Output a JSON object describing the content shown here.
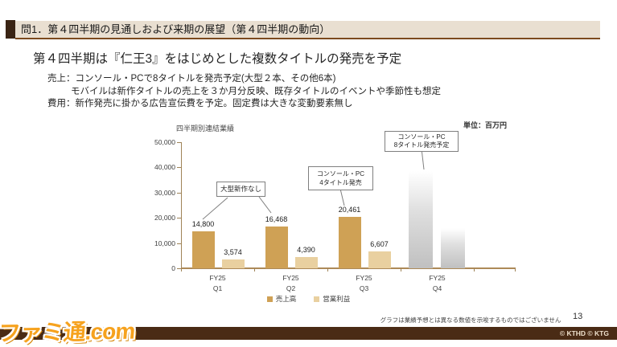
{
  "header": {
    "title": "問1．第４四半期の見通しおよび来期の展望（第４四半期の動向）"
  },
  "title": "第４四半期は『仁王3』をはじめとした複数タイトルの発売を予定",
  "body": {
    "sales_line1": "売上：コンソール・PCで8タイトルを発売予定(大型２本、その他6本)",
    "sales_line2": "モバイルは新作タイトルの売上を３か月分反映、既存タイトルのイベントや季節性も想定",
    "cost_line": "費用：新作発売に掛かる広告宣伝費を予定。固定費は大きな変動要素無し"
  },
  "chart_data": {
    "type": "bar",
    "title": "四半期別連結業績",
    "unit_label": "単位：百万円",
    "categories": [
      {
        "line1": "FY25",
        "line2": "Q1"
      },
      {
        "line1": "FY25",
        "line2": "Q2"
      },
      {
        "line1": "FY25",
        "line2": "Q3"
      },
      {
        "line1": "FY25",
        "line2": "Q4"
      }
    ],
    "series": [
      {
        "name": "売上高",
        "color": "#cfa155",
        "values": [
          14800,
          16468,
          20461,
          null
        ]
      },
      {
        "name": "営業利益",
        "color": "#e9d0a0",
        "values": [
          3574,
          4390,
          6607,
          null
        ]
      }
    ],
    "q4_forecast": {
      "note": "Q4 shown as undisclosed gray gradient bars",
      "bars": [
        {
          "series": "売上高",
          "approx_value": 40000
        },
        {
          "series": "営業利益",
          "approx_value": 16500
        }
      ]
    },
    "ylim": [
      0,
      50000
    ],
    "yticks": [
      "50,000",
      "40,000",
      "30,000",
      "20,000",
      "10,000",
      "0"
    ],
    "legend_position": "bottom",
    "annotations": [
      {
        "lines": [
          "大型新作なし"
        ]
      },
      {
        "lines": [
          "コンソール・PC",
          "4タイトル発売"
        ]
      },
      {
        "lines": [
          "コンソール・PC",
          "8タイトル発売予定"
        ]
      }
    ]
  },
  "footer": {
    "disclaimer": "グラフは業績予想とは異なる数値を示唆するものではございません",
    "page_number": "13",
    "copyright": "© KTHD © KTG"
  },
  "watermark": "ファミ通.com",
  "theme": {
    "accent_brown": "#7c4a1e",
    "header_beige": "#e9dfd1",
    "header_dark": "#3a2414",
    "bottom_bar": "#4a2b15",
    "axis_color": "#9f8357",
    "baseline_color": "#ad8a58",
    "watermark_orange": "#f6a21e"
  }
}
